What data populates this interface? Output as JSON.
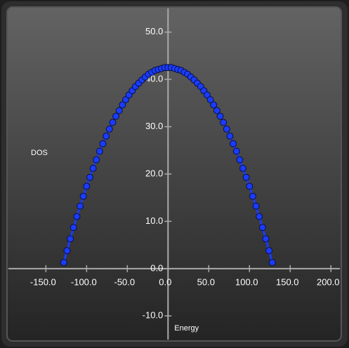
{
  "chart_data": {
    "type": "line-scatter",
    "x_label": "Energy",
    "y_label": "DOS",
    "x": [
      -128,
      -124,
      -120,
      -116,
      -112,
      -108,
      -104,
      -100,
      -96,
      -92,
      -88,
      -84,
      -80,
      -76,
      -72,
      -68,
      -64,
      -60,
      -56,
      -52,
      -48,
      -44,
      -40,
      -36,
      -32,
      -28,
      -24,
      -20,
      -16,
      -12,
      -8,
      -4,
      0,
      4,
      8,
      12,
      16,
      20,
      24,
      28,
      32,
      36,
      40,
      44,
      48,
      52,
      56,
      60,
      64,
      68,
      72,
      76,
      80,
      84,
      88,
      92,
      96,
      100,
      104,
      108,
      112,
      116,
      120,
      124,
      128
    ],
    "series": [
      {
        "color": "#1a3cff",
        "values": [
          1.3,
          3.8,
          6.3,
          8.7,
          11.0,
          13.2,
          15.3,
          17.4,
          19.3,
          21.2,
          23.0,
          24.8,
          26.4,
          28.0,
          29.5,
          30.9,
          32.2,
          33.4,
          34.6,
          35.7,
          36.7,
          37.6,
          38.5,
          39.2,
          39.9,
          40.5,
          41.1,
          41.5,
          41.9,
          42.1,
          42.3,
          42.5,
          42.5,
          42.5,
          42.3,
          42.1,
          41.9,
          41.5,
          41.1,
          40.5,
          39.9,
          39.2,
          38.5,
          37.6,
          36.7,
          35.7,
          34.6,
          33.4,
          32.2,
          30.9,
          29.5,
          28.0,
          26.4,
          24.8,
          23.0,
          21.2,
          19.3,
          17.4,
          15.3,
          13.2,
          11.0,
          8.7,
          6.3,
          3.8,
          1.3
        ]
      }
    ],
    "xlim": [
      -196,
      211
    ],
    "ylim": [
      -15,
      55
    ],
    "xticks": [
      {
        "value": -150,
        "label": "-150.0"
      },
      {
        "value": -100,
        "label": "-100.0"
      },
      {
        "value": -50,
        "label": "-50.0"
      },
      {
        "value": 0,
        "label": "0.0"
      },
      {
        "value": 50,
        "label": "50.0"
      },
      {
        "value": 100,
        "label": "100.0"
      },
      {
        "value": 150,
        "label": "150.0"
      },
      {
        "value": 200,
        "label": "200.0"
      }
    ],
    "yticks": [
      {
        "value": -10,
        "label": "-10.0"
      },
      {
        "value": 0,
        "label": "0.0"
      },
      {
        "value": 10,
        "label": "10.0"
      },
      {
        "value": 20,
        "label": "20.0"
      },
      {
        "value": 30,
        "label": "30.0"
      },
      {
        "value": 40,
        "label": "40.0"
      },
      {
        "value": 50,
        "label": "50.0"
      }
    ]
  }
}
